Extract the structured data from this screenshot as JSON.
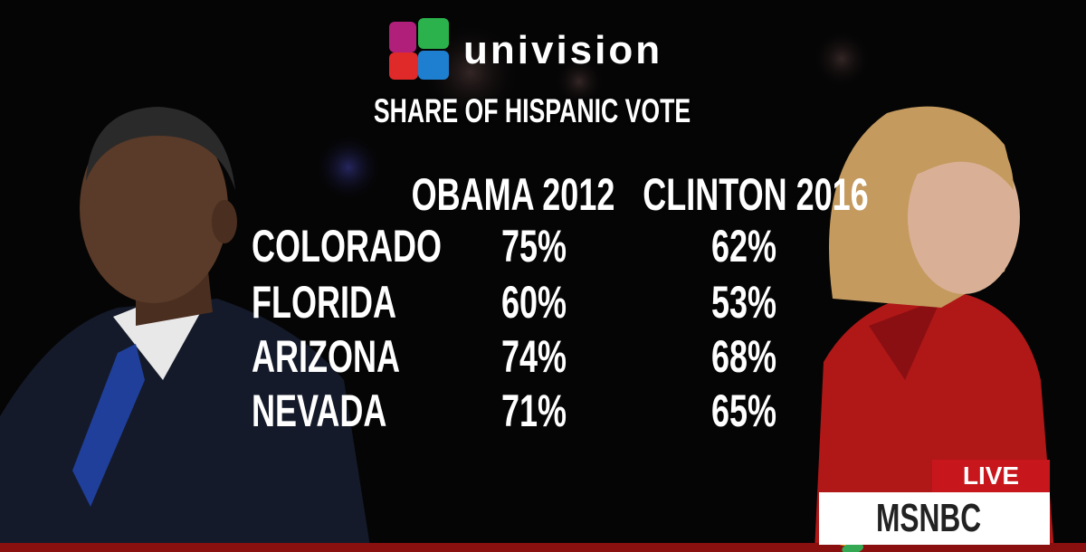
{
  "logo": "univision",
  "title": "SHARE OF HISPANIC VOTE",
  "table": {
    "columns": [
      "OBAMA 2012",
      "CLINTON 2016"
    ],
    "rows": [
      [
        "COLORADO",
        "75%",
        "62%"
      ],
      [
        "FLORIDA",
        "60%",
        "53%"
      ],
      [
        "ARIZONA",
        "74%",
        "68%"
      ],
      [
        "NEVADA",
        "71%",
        "65%"
      ]
    ]
  },
  "badge": {
    "live": "LIVE",
    "network": "MSNBC"
  }
}
